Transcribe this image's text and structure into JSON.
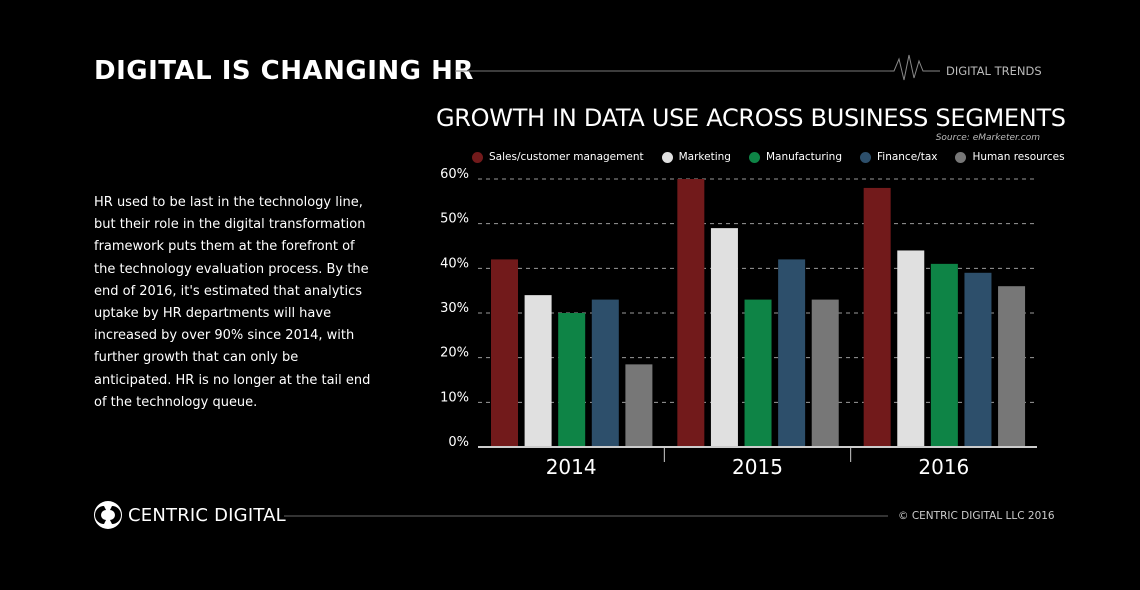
{
  "header": {
    "title": "DIGITAL IS CHANGING HR",
    "section_label": "DIGITAL TRENDS"
  },
  "body_text": "HR used to be last in the technology line, but their role in the digital transformation framework puts them at the forefront of the technology evaluation process. By the end of 2016, it's estimated that analytics uptake by HR departments will have increased by over 90% since 2014, with further growth that can only be anticipated. HR is no longer at the tail end of the technology queue.",
  "footer": {
    "brand": "CENTRIC DIGITAL",
    "copyright": "© CENTRIC DIGITAL LLC 2016"
  },
  "chart_data": {
    "type": "bar",
    "title": "GROWTH IN DATA USE ACROSS BUSINESS SEGMENTS",
    "source": "Source: eMarketer.com",
    "categories": [
      "2014",
      "2015",
      "2016"
    ],
    "ylim": [
      0,
      60
    ],
    "yticks": [
      "0%",
      "10%",
      "20%",
      "30%",
      "40%",
      "50%",
      "60%"
    ],
    "grid": true,
    "legend_position": "top",
    "series": [
      {
        "name": "Sales/customer management",
        "color": "#721a1b",
        "values": [
          42,
          60,
          58
        ]
      },
      {
        "name": "Marketing",
        "color": "#e0e0e0",
        "values": [
          34,
          49,
          44
        ]
      },
      {
        "name": "Manufacturing",
        "color": "#0e8446",
        "values": [
          30,
          33,
          41
        ]
      },
      {
        "name": "Finance/tax",
        "color": "#2d4f6b",
        "values": [
          33,
          42,
          39
        ]
      },
      {
        "name": "Human resources",
        "color": "#777777",
        "values": [
          18.5,
          33,
          36
        ]
      }
    ]
  }
}
